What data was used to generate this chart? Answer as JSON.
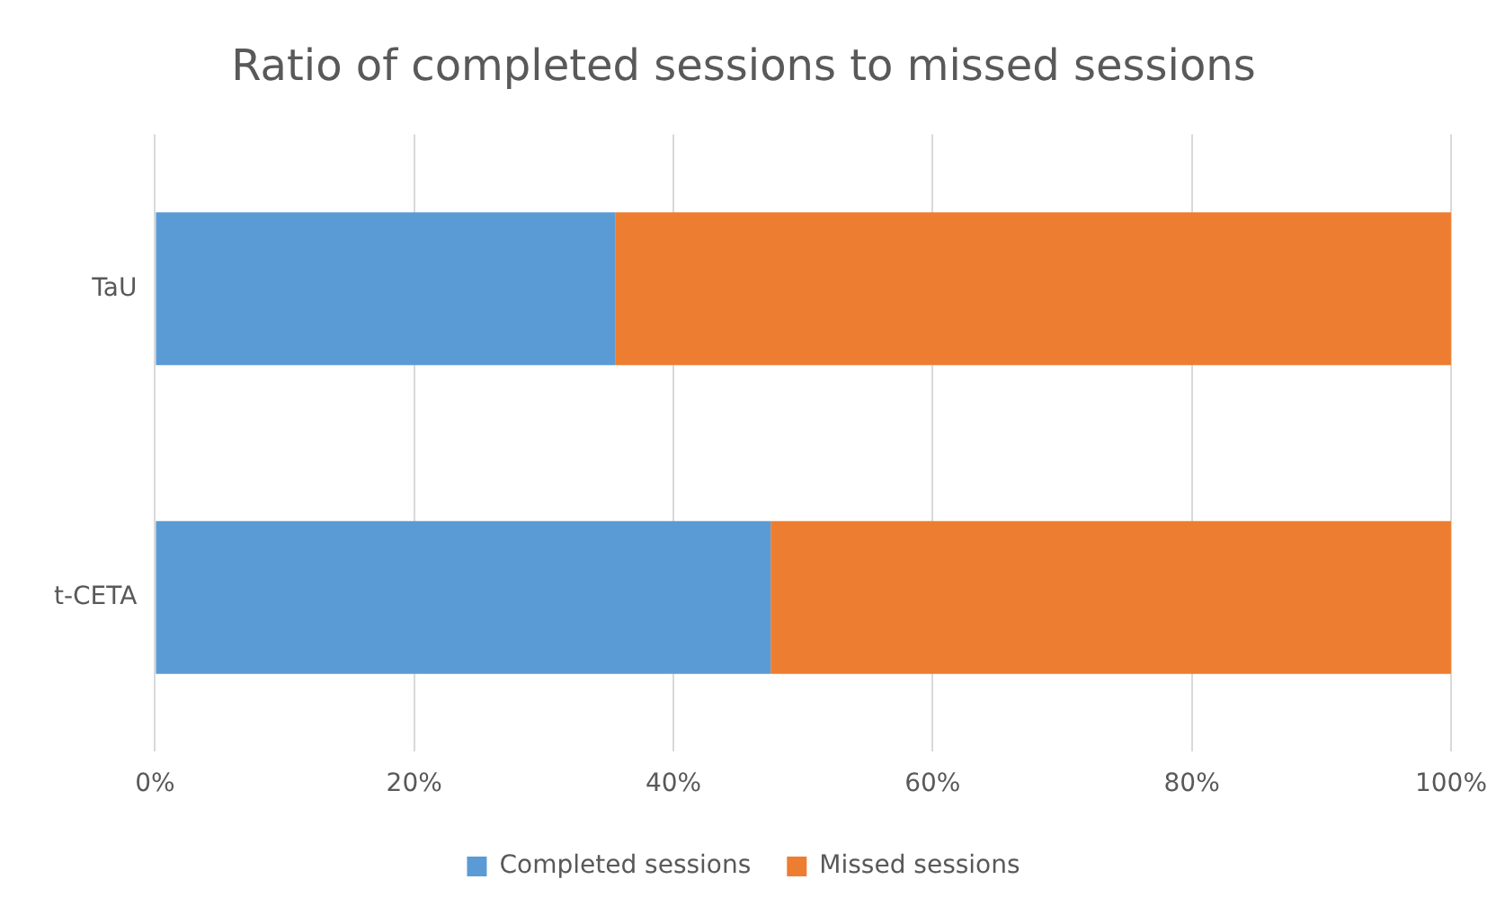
{
  "chart_data": {
    "type": "bar",
    "orientation": "horizontal",
    "stacked": true,
    "title": "Ratio of completed sessions to missed sessions",
    "categories": [
      "TaU",
      "t-CETA"
    ],
    "series": [
      {
        "name": "Completed sessions",
        "color": "#5b9bd5",
        "values": [
          35.5,
          47.5
        ]
      },
      {
        "name": "Missed sessions",
        "color": "#ed7d31",
        "values": [
          64.5,
          52.5
        ]
      }
    ],
    "xlim": [
      0,
      100
    ],
    "xticks": [
      {
        "value": 0,
        "label": "0%"
      },
      {
        "value": 20,
        "label": "20%"
      },
      {
        "value": 40,
        "label": "40%"
      },
      {
        "value": 60,
        "label": "60%"
      },
      {
        "value": 80,
        "label": "80%"
      },
      {
        "value": 100,
        "label": "100%"
      }
    ],
    "grid": "x",
    "legend": "bottom"
  }
}
